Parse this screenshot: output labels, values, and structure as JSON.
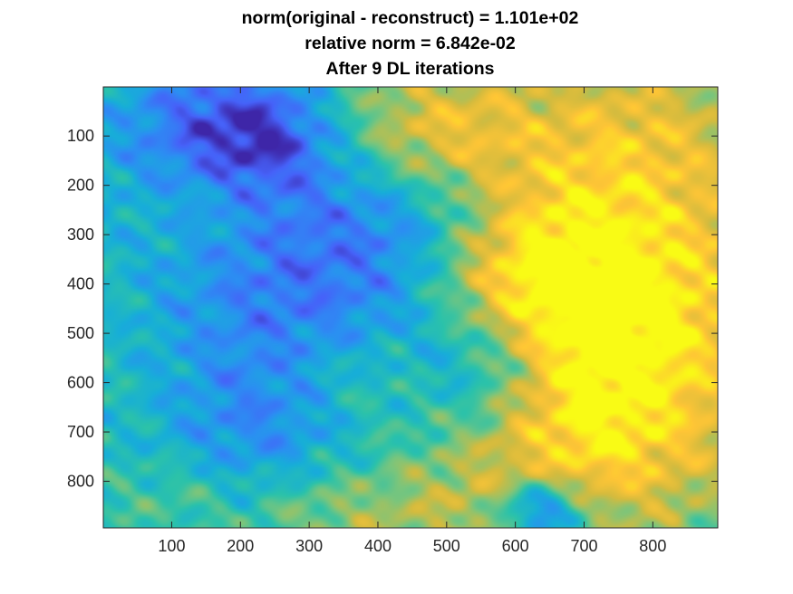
{
  "chart_data": {
    "type": "heatmap",
    "title": [
      "norm(original - reconstruct) = 1.101e+02",
      "relative norm = 6.842e-02",
      "After 9 DL iterations"
    ],
    "xlabel": "",
    "ylabel": "",
    "xlim": [
      0.5,
      894.5
    ],
    "ylim": [
      0.5,
      894.5
    ],
    "y_direction": "reverse",
    "x_ticks": [
      100,
      200,
      300,
      400,
      500,
      600,
      700,
      800
    ],
    "y_ticks": [
      100,
      200,
      300,
      400,
      500,
      600,
      700,
      800
    ],
    "x_tick_labels": [
      "100",
      "200",
      "300",
      "400",
      "500",
      "600",
      "700",
      "800"
    ],
    "y_tick_labels": [
      "100",
      "200",
      "300",
      "400",
      "500",
      "600",
      "700",
      "800"
    ],
    "colormap": "parula",
    "colormap_stops": [
      "#3e26a8",
      "#4662f9",
      "#2b8ff2",
      "#17aed8",
      "#2bc2aa",
      "#7cc57b",
      "#d4bb3e",
      "#fec536",
      "#f9fb15"
    ],
    "grid": false,
    "colorbar": false,
    "blobs": [
      {
        "x": 180,
        "y": 100,
        "r": 130,
        "a": -0.5
      },
      {
        "x": 420,
        "y": 100,
        "r": 110,
        "a": 0.3
      },
      {
        "x": 240,
        "y": 110,
        "r": 70,
        "a": -0.2
      },
      {
        "x": 520,
        "y": 100,
        "r": 90,
        "a": 0.15
      },
      {
        "x": 780,
        "y": 70,
        "r": 110,
        "a": 0.15
      },
      {
        "x": 330,
        "y": 350,
        "r": 190,
        "a": -0.45
      },
      {
        "x": 480,
        "y": 260,
        "r": 100,
        "a": -0.3
      },
      {
        "x": 160,
        "y": 220,
        "r": 90,
        "a": 0.25
      },
      {
        "x": 700,
        "y": 300,
        "r": 220,
        "a": 0.45
      },
      {
        "x": 620,
        "y": 450,
        "r": 160,
        "a": 0.3
      },
      {
        "x": 760,
        "y": 520,
        "r": 150,
        "a": 0.15
      },
      {
        "x": 800,
        "y": 700,
        "r": 160,
        "a": 0.2
      },
      {
        "x": 650,
        "y": 620,
        "r": 120,
        "a": 0.1
      },
      {
        "x": 250,
        "y": 720,
        "r": 160,
        "a": -0.45
      },
      {
        "x": 100,
        "y": 650,
        "r": 110,
        "a": 0.1
      },
      {
        "x": 480,
        "y": 820,
        "r": 120,
        "a": 0.3
      },
      {
        "x": 520,
        "y": 640,
        "r": 110,
        "a": -0.25
      },
      {
        "x": 470,
        "y": 470,
        "r": 120,
        "a": -0.2
      },
      {
        "x": 380,
        "y": 600,
        "r": 90,
        "a": 0.35
      },
      {
        "x": 640,
        "y": 860,
        "r": 45,
        "a": -0.6
      },
      {
        "x": 700,
        "y": 760,
        "r": 110,
        "a": 0.2
      },
      {
        "x": 300,
        "y": 860,
        "r": 90,
        "a": 0.3
      },
      {
        "x": 110,
        "y": 830,
        "r": 70,
        "a": 0.2
      },
      {
        "x": 560,
        "y": 560,
        "r": 70,
        "a": -0.2
      },
      {
        "x": 580,
        "y": 350,
        "r": 90,
        "a": 0.2
      }
    ]
  }
}
